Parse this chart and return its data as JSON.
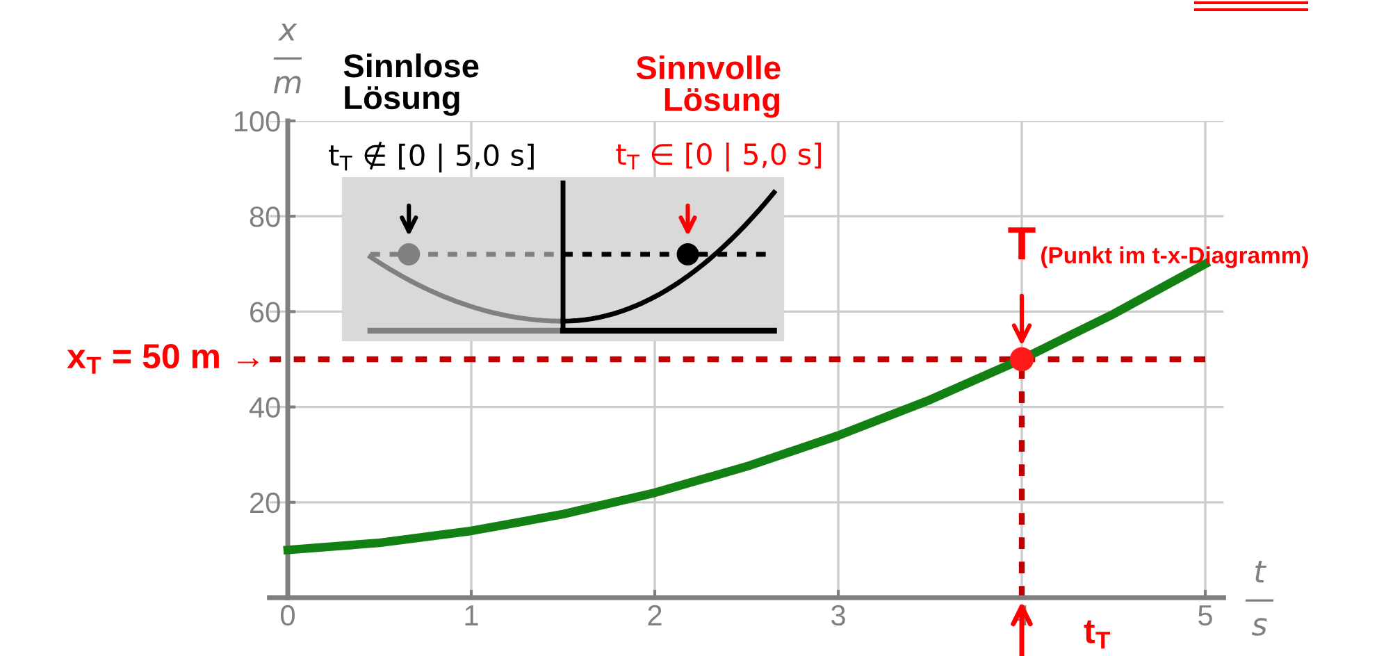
{
  "chart_data": {
    "type": "line",
    "xlabel": "t\n—\ns",
    "ylabel": "x\n—\nm",
    "x": [
      0,
      0.5,
      1,
      1.5,
      2,
      2.5,
      3,
      3.5,
      4,
      4.5,
      5
    ],
    "series": [
      {
        "color": "#138013",
        "values": [
          10,
          11.5,
          14,
          17.5,
          22,
          27.5,
          34,
          41.5,
          50,
          59.5,
          70
        ]
      },
      {
        "type": "scatter",
        "color": "#ff1a1a",
        "marker": "circle",
        "x": [
          4
        ],
        "values": [
          50
        ]
      }
    ],
    "xlim": [
      -0.1,
      5.1
    ],
    "ylim": [
      0,
      100
    ],
    "xticks": [
      0,
      1,
      2,
      3,
      4,
      5
    ],
    "yticks": [
      {
        "value": 0,
        "label": null
      },
      20,
      40,
      60,
      80,
      100
    ],
    "grid": true,
    "line_style": "solid",
    "ref_lines": [
      {
        "axis": "y",
        "value": 50,
        "label": "x$_{T}$ = 50 m →",
        "color": "#c00000",
        "line_style": "dotted"
      },
      {
        "axis": "x",
        "value": 4,
        "label": "t$_{T}$",
        "color": "#c00000",
        "line_style": "dotted"
      }
    ],
    "annotations": [
      {
        "text": "T",
        "x": 4,
        "y": 50
      },
      "(Punkt im t-x-Diagramm)",
      "Sinnlose\nLösung",
      "Sinnvolle\nLösung",
      "t$_{T}$ ∉ [0 | 5,0 s]",
      "t$_{T}$ ∈ [0 | 5,0 s]"
    ]
  }
}
